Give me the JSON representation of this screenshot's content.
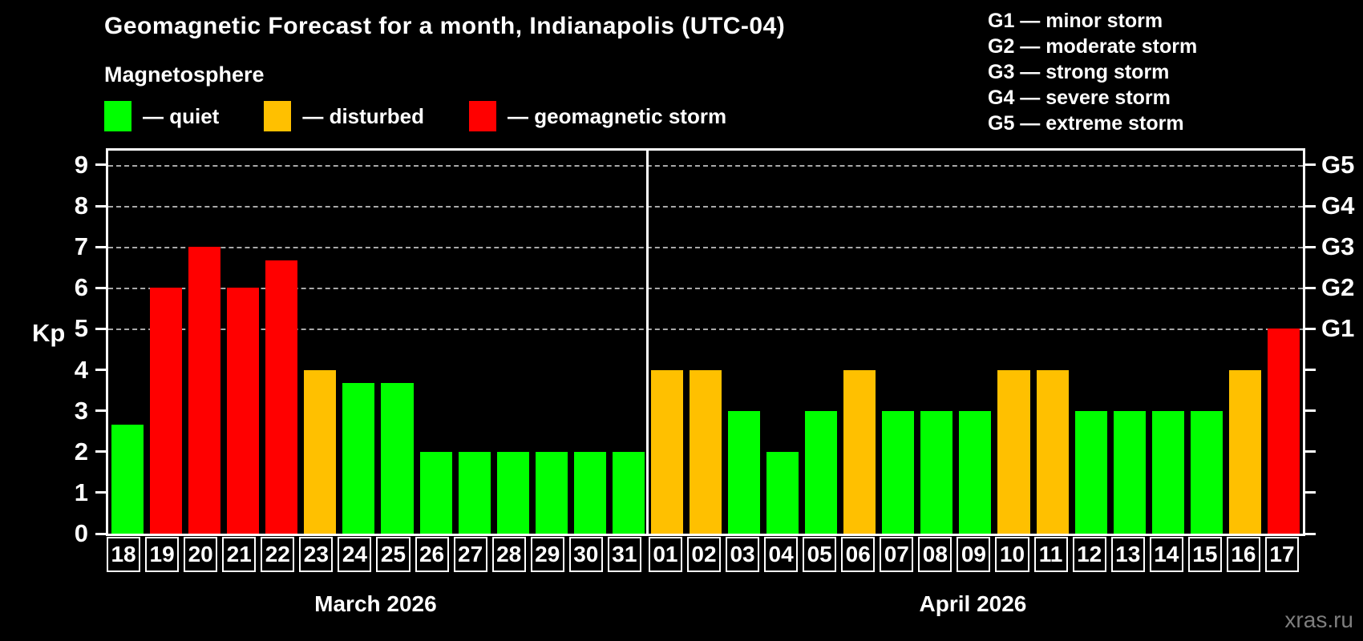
{
  "title": "Geomagnetic Forecast for a month, Indianapolis (UTC-04)",
  "subtitle": "Magnetosphere",
  "legend": {
    "items": [
      {
        "name": "quiet",
        "label": "— quiet",
        "color": "#00ff00"
      },
      {
        "name": "disturbed",
        "label": "— disturbed",
        "color": "#ffc000"
      },
      {
        "name": "storm",
        "label": "— geomagnetic storm",
        "color": "#ff0000"
      }
    ]
  },
  "g_scale_legend": [
    "G1 — minor storm",
    "G2 — moderate storm",
    "G3 — strong storm",
    "G4 — severe storm",
    "G5 — extreme storm"
  ],
  "watermark": "xras.ru",
  "chart_data": {
    "type": "bar",
    "title": "Geomagnetic Forecast for a month, Indianapolis (UTC-04)",
    "ylabel": "Kp",
    "ylim": [
      0,
      9.35
    ],
    "yticks": [
      0,
      1,
      2,
      3,
      4,
      5,
      6,
      7,
      8,
      9
    ],
    "gridlines": [
      5,
      6,
      7,
      8,
      9
    ],
    "right_axis_labels": [
      {
        "value": 5,
        "label": "G1"
      },
      {
        "value": 6,
        "label": "G2"
      },
      {
        "value": 7,
        "label": "G3"
      },
      {
        "value": 8,
        "label": "G4"
      },
      {
        "value": 9,
        "label": "G5"
      }
    ],
    "status_colors": {
      "quiet": "#00ff00",
      "disturbed": "#ffc000",
      "storm": "#ff0000"
    },
    "legend_position": "top-left",
    "grid": "dashed, storm levels only",
    "months": [
      {
        "label": "March 2026",
        "days": [
          {
            "date": "18",
            "kp": 2.67,
            "status": "quiet"
          },
          {
            "date": "19",
            "kp": 6,
            "status": "storm"
          },
          {
            "date": "20",
            "kp": 7,
            "status": "storm"
          },
          {
            "date": "21",
            "kp": 6,
            "status": "storm"
          },
          {
            "date": "22",
            "kp": 6.67,
            "status": "storm"
          },
          {
            "date": "23",
            "kp": 4,
            "status": "disturbed"
          },
          {
            "date": "24",
            "kp": 3.67,
            "status": "quiet"
          },
          {
            "date": "25",
            "kp": 3.67,
            "status": "quiet"
          },
          {
            "date": "26",
            "kp": 2,
            "status": "quiet"
          },
          {
            "date": "27",
            "kp": 2,
            "status": "quiet"
          },
          {
            "date": "28",
            "kp": 2,
            "status": "quiet"
          },
          {
            "date": "29",
            "kp": 2,
            "status": "quiet"
          },
          {
            "date": "30",
            "kp": 2,
            "status": "quiet"
          },
          {
            "date": "31",
            "kp": 2,
            "status": "quiet"
          }
        ]
      },
      {
        "label": "April 2026",
        "days": [
          {
            "date": "01",
            "kp": 4,
            "status": "disturbed"
          },
          {
            "date": "02",
            "kp": 4,
            "status": "disturbed"
          },
          {
            "date": "03",
            "kp": 3,
            "status": "quiet"
          },
          {
            "date": "04",
            "kp": 2,
            "status": "quiet"
          },
          {
            "date": "05",
            "kp": 3,
            "status": "quiet"
          },
          {
            "date": "06",
            "kp": 4,
            "status": "disturbed"
          },
          {
            "date": "07",
            "kp": 3,
            "status": "quiet"
          },
          {
            "date": "08",
            "kp": 3,
            "status": "quiet"
          },
          {
            "date": "09",
            "kp": 3,
            "status": "quiet"
          },
          {
            "date": "10",
            "kp": 4,
            "status": "disturbed"
          },
          {
            "date": "11",
            "kp": 4,
            "status": "disturbed"
          },
          {
            "date": "12",
            "kp": 3,
            "status": "quiet"
          },
          {
            "date": "13",
            "kp": 3,
            "status": "quiet"
          },
          {
            "date": "14",
            "kp": 3,
            "status": "quiet"
          },
          {
            "date": "15",
            "kp": 3,
            "status": "quiet"
          },
          {
            "date": "16",
            "kp": 4,
            "status": "disturbed"
          },
          {
            "date": "17",
            "kp": 5,
            "status": "storm"
          }
        ]
      }
    ]
  }
}
